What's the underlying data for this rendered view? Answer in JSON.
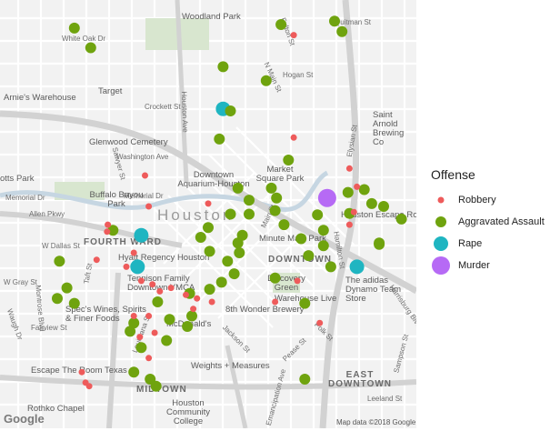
{
  "legend": {
    "title": "Offense",
    "items": [
      {
        "label": "Robbery",
        "color": "#EE5B5B",
        "size": "small"
      },
      {
        "label": "Aggravated Assault",
        "color": "#6FA30E",
        "size": "medium"
      },
      {
        "label": "Rape",
        "color": "#1FB5C1",
        "size": "large"
      },
      {
        "label": "Murder",
        "color": "#B66AF5",
        "size": "largest"
      }
    ]
  },
  "map": {
    "city_label": "Houston",
    "attribution": "Map data ©2018 Google",
    "google_logo": "Google",
    "districts": [
      "FOURTH WARD",
      "DOWNTOWN",
      "MIDTOWN",
      "EAST DOWNTOWN"
    ],
    "streets": [
      "White Oak Dr",
      "Quitman St",
      "Fulton St",
      "Hogan St",
      "N Main St",
      "Crockett St",
      "Washington Ave",
      "Memorial Dr",
      "Allen Pkwy",
      "W Dallas St",
      "W Gray St",
      "Fairview St",
      "Taft St",
      "Main St",
      "Polk St",
      "Pease St",
      "Leeland St",
      "Emancipation Ave",
      "Elysian St",
      "Houston Ave",
      "Sawyer St",
      "Louisiana St",
      "Montrose Blvd",
      "Waugh Dr",
      "Hamilton St",
      "Harrisburg Blvd",
      "Sampson St",
      "Jackson St",
      "Memorial Dr"
    ],
    "places": [
      "Woodland Park",
      "Target",
      "Arnie's Warehouse",
      "Glenwood Cemetery",
      "Downtown Aquarium-Houston",
      "Market Square Park",
      "Buffalo Bayou Park",
      "Saint Arnold Brewing Co",
      "Houston Escape Room",
      "Minute Maid Park",
      "Hyatt Regency Houston",
      "Tennison Family Downtown YMCA",
      "Discovery Green",
      "Warehouse Live",
      "The adidas Dynamo Team Store",
      "Spec's Wines, Spirits & Finer Foods",
      "McDonald's",
      "8th Wonder Brewery",
      "Weights + Measures",
      "Escape The Room Texas",
      "Houston Community College",
      "Rothko Chapel",
      "otts Park",
      "Arnie's Warehouse"
    ],
    "points": [
      {
        "offense": "Aggravated Assault",
        "lat": 29.784,
        "lon": -95.387
      },
      {
        "offense": "Aggravated Assault",
        "lat": 29.7812,
        "lon": -95.3848
      },
      {
        "offense": "Aggravated Assault",
        "lat": 29.785,
        "lon": -95.352
      },
      {
        "offense": "Aggravated Assault",
        "lat": 29.7845,
        "lon": -95.3592
      },
      {
        "offense": "Aggravated Assault",
        "lat": 29.7835,
        "lon": -95.351
      },
      {
        "offense": "Aggravated Assault",
        "lat": 29.7785,
        "lon": -95.367
      },
      {
        "offense": "Aggravated Assault",
        "lat": 29.7765,
        "lon": -95.3612
      },
      {
        "offense": "Aggravated Assault",
        "lat": 29.7722,
        "lon": -95.366
      },
      {
        "offense": "Aggravated Assault",
        "lat": 29.7682,
        "lon": -95.3675
      },
      {
        "offense": "Aggravated Assault",
        "lat": 29.7612,
        "lon": -95.365
      },
      {
        "offense": "Aggravated Assault",
        "lat": 29.7595,
        "lon": -95.3635
      },
      {
        "offense": "Aggravated Assault",
        "lat": 29.7575,
        "lon": -95.366
      },
      {
        "offense": "Aggravated Assault",
        "lat": 29.7575,
        "lon": -95.3635
      },
      {
        "offense": "Aggravated Assault",
        "lat": 29.756,
        "lon": -95.3588
      },
      {
        "offense": "Aggravated Assault",
        "lat": 29.7556,
        "lon": -95.369
      },
      {
        "offense": "Aggravated Assault",
        "lat": 29.7542,
        "lon": -95.37
      },
      {
        "offense": "Aggravated Assault",
        "lat": 29.7545,
        "lon": -95.3644
      },
      {
        "offense": "Aggravated Assault",
        "lat": 29.7534,
        "lon": -95.365
      },
      {
        "offense": "Aggravated Assault",
        "lat": 29.7522,
        "lon": -95.3688
      },
      {
        "offense": "Aggravated Assault",
        "lat": 29.752,
        "lon": -95.3648
      },
      {
        "offense": "Aggravated Assault",
        "lat": 29.7508,
        "lon": -95.3664
      },
      {
        "offense": "Aggravated Assault",
        "lat": 29.749,
        "lon": -95.3655
      },
      {
        "offense": "Aggravated Assault",
        "lat": 29.7478,
        "lon": -95.3672
      },
      {
        "offense": "Aggravated Assault",
        "lat": 29.745,
        "lon": -95.3758
      },
      {
        "offense": "Aggravated Assault",
        "lat": 29.7425,
        "lon": -95.3742
      },
      {
        "offense": "Aggravated Assault",
        "lat": 29.7468,
        "lon": -95.3688
      },
      {
        "offense": "Aggravated Assault",
        "lat": 29.7462,
        "lon": -95.3715
      },
      {
        "offense": "Aggravated Assault",
        "lat": 29.743,
        "lon": -95.3712
      },
      {
        "offense": "Aggravated Assault",
        "lat": 29.7415,
        "lon": -95.3718
      },
      {
        "offense": "Aggravated Assault",
        "lat": 29.7408,
        "lon": -95.3795
      },
      {
        "offense": "Aggravated Assault",
        "lat": 29.7385,
        "lon": -95.378
      },
      {
        "offense": "Aggravated Assault",
        "lat": 29.735,
        "lon": -95.379
      },
      {
        "offense": "Aggravated Assault",
        "lat": 29.734,
        "lon": -95.3768
      },
      {
        "offense": "Aggravated Assault",
        "lat": 29.733,
        "lon": -95.376
      },
      {
        "offense": "Aggravated Assault",
        "lat": 29.754,
        "lon": -95.3565
      },
      {
        "offense": "Aggravated Assault",
        "lat": 29.753,
        "lon": -95.3535
      },
      {
        "offense": "Aggravated Assault",
        "lat": 29.7516,
        "lon": -95.3555
      },
      {
        "offense": "Aggravated Assault",
        "lat": 29.75,
        "lon": -95.3525
      },
      {
        "offense": "Aggravated Assault",
        "lat": 29.7574,
        "lon": -95.3543
      },
      {
        "offense": "Aggravated Assault",
        "lat": 29.7552,
        "lon": -95.3535
      },
      {
        "offense": "Aggravated Assault",
        "lat": 29.7534,
        "lon": -95.346
      },
      {
        "offense": "Aggravated Assault",
        "lat": 29.7612,
        "lon": -95.3605
      },
      {
        "offense": "Aggravated Assault",
        "lat": 29.7598,
        "lon": -95.3598
      },
      {
        "offense": "Aggravated Assault",
        "lat": 29.758,
        "lon": -95.36
      },
      {
        "offense": "Aggravated Assault",
        "lat": 29.7576,
        "lon": -95.35
      },
      {
        "offense": "Aggravated Assault",
        "lat": 29.7586,
        "lon": -95.3454
      },
      {
        "offense": "Aggravated Assault",
        "lat": 29.7532,
        "lon": -95.346
      },
      {
        "offense": "Aggravated Assault",
        "lat": 29.7484,
        "lon": -95.36
      },
      {
        "offense": "Aggravated Assault",
        "lat": 29.7448,
        "lon": -95.356
      },
      {
        "offense": "Aggravated Assault",
        "lat": 29.7552,
        "lon": -95.3818
      },
      {
        "offense": "Aggravated Assault",
        "lat": 29.7508,
        "lon": -95.389
      },
      {
        "offense": "Aggravated Assault",
        "lat": 29.747,
        "lon": -95.388
      },
      {
        "offense": "Aggravated Assault",
        "lat": 29.7455,
        "lon": -95.3893
      },
      {
        "offense": "Aggravated Assault",
        "lat": 29.7448,
        "lon": -95.387
      },
      {
        "offense": "Aggravated Assault",
        "lat": 29.734,
        "lon": -95.356
      },
      {
        "offense": "Aggravated Assault",
        "lat": 29.7568,
        "lon": -95.343
      },
      {
        "offense": "Aggravated Assault",
        "lat": 29.761,
        "lon": -95.348
      },
      {
        "offense": "Aggravated Assault",
        "lat": 29.7606,
        "lon": -95.3502
      },
      {
        "offense": "Aggravated Assault",
        "lat": 29.759,
        "lon": -95.347
      },
      {
        "offense": "Aggravated Assault",
        "lat": 29.7652,
        "lon": -95.3582
      },
      {
        "offense": "Aggravated Assault",
        "lat": 29.742,
        "lon": -95.379
      },
      {
        "offense": "Aggravated Assault",
        "lat": 29.7395,
        "lon": -95.3746
      },
      {
        "offense": "Robbery",
        "lat": 29.783,
        "lon": -95.3575
      },
      {
        "offense": "Robbery",
        "lat": 29.7684,
        "lon": -95.3575
      },
      {
        "offense": "Robbery",
        "lat": 29.763,
        "lon": -95.3775
      },
      {
        "offense": "Robbery",
        "lat": 29.7586,
        "lon": -95.377
      },
      {
        "offense": "Robbery",
        "lat": 29.759,
        "lon": -95.369
      },
      {
        "offense": "Robbery",
        "lat": 29.756,
        "lon": -95.3825
      },
      {
        "offense": "Robbery",
        "lat": 29.755,
        "lon": -95.3826
      },
      {
        "offense": "Robbery",
        "lat": 29.752,
        "lon": -95.379
      },
      {
        "offense": "Robbery",
        "lat": 29.751,
        "lon": -95.384
      },
      {
        "offense": "Robbery",
        "lat": 29.75,
        "lon": -95.38
      },
      {
        "offense": "Robbery",
        "lat": 29.748,
        "lon": -95.378
      },
      {
        "offense": "Robbery",
        "lat": 29.7475,
        "lon": -95.3765
      },
      {
        "offense": "Robbery",
        "lat": 29.747,
        "lon": -95.374
      },
      {
        "offense": "Robbery",
        "lat": 29.7465,
        "lon": -95.3755
      },
      {
        "offense": "Robbery",
        "lat": 29.746,
        "lon": -95.372
      },
      {
        "offense": "Robbery",
        "lat": 29.7455,
        "lon": -95.3705
      },
      {
        "offense": "Robbery",
        "lat": 29.745,
        "lon": -95.3685
      },
      {
        "offense": "Robbery",
        "lat": 29.744,
        "lon": -95.371
      },
      {
        "offense": "Robbery",
        "lat": 29.743,
        "lon": -95.377
      },
      {
        "offense": "Robbery",
        "lat": 29.7406,
        "lon": -95.3762
      },
      {
        "offense": "Robbery",
        "lat": 29.74,
        "lon": -95.3782
      },
      {
        "offense": "Robbery",
        "lat": 29.737,
        "lon": -95.377
      },
      {
        "offense": "Robbery",
        "lat": 29.735,
        "lon": -95.386
      },
      {
        "offense": "Robbery",
        "lat": 29.733,
        "lon": -95.385
      },
      {
        "offense": "Robbery",
        "lat": 29.7335,
        "lon": -95.3855
      },
      {
        "offense": "Robbery",
        "lat": 29.742,
        "lon": -95.354
      },
      {
        "offense": "Robbery",
        "lat": 29.745,
        "lon": -95.36
      },
      {
        "offense": "Robbery",
        "lat": 29.764,
        "lon": -95.35
      },
      {
        "offense": "Robbery",
        "lat": 29.756,
        "lon": -95.35
      },
      {
        "offense": "Robbery",
        "lat": 29.7578,
        "lon": -95.3494
      },
      {
        "offense": "Robbery",
        "lat": 29.7614,
        "lon": -95.349
      },
      {
        "offense": "Robbery",
        "lat": 29.748,
        "lon": -95.357
      },
      {
        "offense": "Robbery",
        "lat": 29.743,
        "lon": -95.379
      },
      {
        "offense": "Rape",
        "lat": 29.7725,
        "lon": -95.367
      },
      {
        "offense": "Rape",
        "lat": 29.7545,
        "lon": -95.378
      },
      {
        "offense": "Rape",
        "lat": 29.75,
        "lon": -95.3785
      },
      {
        "offense": "Rape",
        "lat": 29.75,
        "lon": -95.349
      },
      {
        "offense": "Murder",
        "lat": 29.7598,
        "lon": -95.353
      }
    ]
  }
}
